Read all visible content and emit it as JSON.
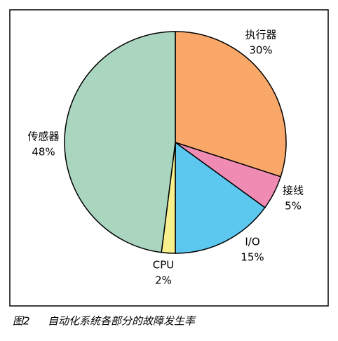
{
  "chart_data": {
    "type": "pie",
    "caption": "图2",
    "title": "自动化系统各部分的故障发生率",
    "categories": [
      "执行器",
      "接线",
      "I/O",
      "CPU",
      "传感器"
    ],
    "values": [
      30,
      5,
      15,
      2,
      48
    ],
    "value_labels": [
      "30%",
      "5%",
      "15%",
      "2%",
      "48%"
    ],
    "colors": [
      "#f9a86a",
      "#f08cb4",
      "#5cc8f0",
      "#f7f08c",
      "#aad5bf"
    ]
  }
}
